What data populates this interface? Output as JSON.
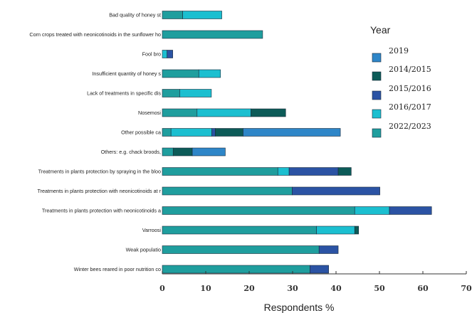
{
  "chart_data": {
    "type": "bar",
    "stacked": true,
    "orientation": "horizontal",
    "categories": [
      "Bad quality of honey st",
      "Corn crops treated with neonicotinoids in the sunflower ho",
      "Fool bro",
      "Insufficient quantity of honey s",
      "Lack of treatments in specific dis",
      "Nosemosi",
      "Other possible ca",
      "Others: e.g. chack broods,",
      "Treatments in plants protection by spraying in the bloo",
      "Treatments in plants protection with neonicotinoids at r",
      "Treatments in plants protection with neonicotinoids a",
      "Varroosi",
      "Weak populatio",
      "Winter bees reared in poor nutrition co"
    ],
    "series": [
      {
        "name": "2022/2023",
        "color": "#1f9e9e",
        "values": [
          4.7,
          23.1,
          0,
          8.4,
          4.0,
          8.0,
          2.0,
          2.5,
          26.6,
          29.9,
          44.3,
          35.5,
          36.1,
          34.0
        ]
      },
      {
        "name": "2016/2017",
        "color": "#1bbfd0",
        "values": [
          9.0,
          0,
          1.1,
          5.0,
          7.3,
          12.4,
          9.4,
          0,
          2.6,
          0,
          8.0,
          8.8,
          0,
          0
        ]
      },
      {
        "name": "2015/2016",
        "color": "#2b53a4",
        "values": [
          0,
          0,
          1.3,
          0,
          0,
          0,
          0.8,
          0,
          11.3,
          20.2,
          9.7,
          0,
          4.4,
          4.3
        ]
      },
      {
        "name": "2014/2015",
        "color": "#0c5b58",
        "values": [
          0,
          0,
          0,
          0,
          0,
          8.0,
          6.4,
          4.4,
          3.0,
          0,
          0,
          0.9,
          0,
          0
        ]
      },
      {
        "name": "2019",
        "color": "#2e86c8",
        "values": [
          0,
          0,
          0,
          0,
          0,
          0,
          22.4,
          7.6,
          0,
          0,
          0,
          0,
          0,
          0
        ]
      }
    ],
    "legend": {
      "title": "Year",
      "placement": "right",
      "items": [
        "2019",
        "2014/2015",
        "2015/2016",
        "2016/2017",
        "2022/2023"
      ]
    },
    "xlabel": "Respondents %",
    "xlim": [
      0,
      70
    ],
    "xticks": [
      "0",
      "10",
      "20",
      "30",
      "40",
      "50",
      "60",
      "70"
    ],
    "grid": false
  }
}
